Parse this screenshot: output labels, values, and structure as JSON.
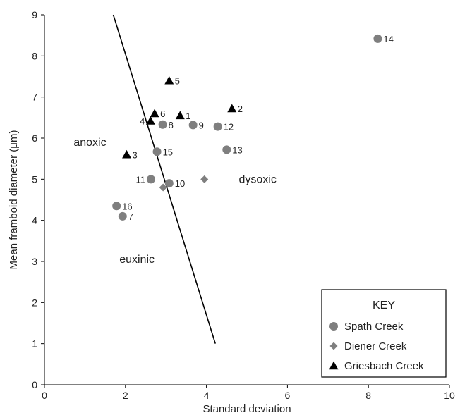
{
  "chart_data": {
    "type": "scatter",
    "xlabel": "Standard deviation",
    "ylabel": "Mean framboid diameter (μm)",
    "xlim": [
      0,
      10
    ],
    "ylim": [
      0,
      9
    ],
    "x_ticks": [
      "0",
      "2",
      "4",
      "6",
      "8",
      "10"
    ],
    "y_ticks": [
      "0",
      "1",
      "2",
      "3",
      "4",
      "5",
      "6",
      "7",
      "8",
      "9"
    ],
    "grid": false,
    "legend_title": "KEY",
    "legend_position": "bottom-right",
    "series": [
      {
        "name": "Spath Creek",
        "marker": "circle",
        "color": "#7f7f7f",
        "points": [
          {
            "x": 1.78,
            "y": 4.35,
            "label": "16"
          },
          {
            "x": 1.93,
            "y": 4.1,
            "label": "7"
          },
          {
            "x": 2.63,
            "y": 5.0,
            "label": "11"
          },
          {
            "x": 3.08,
            "y": 4.9,
            "label": "10"
          },
          {
            "x": 2.78,
            "y": 5.67,
            "label": "15"
          },
          {
            "x": 2.92,
            "y": 6.33,
            "label": "8"
          },
          {
            "x": 3.67,
            "y": 6.32,
            "label": "9"
          },
          {
            "x": 4.28,
            "y": 6.28,
            "label": "12"
          },
          {
            "x": 4.5,
            "y": 5.72,
            "label": "13"
          },
          {
            "x": 8.23,
            "y": 8.42,
            "label": "14"
          }
        ]
      },
      {
        "name": "Diener Creek",
        "marker": "diamond",
        "color": "#7f7f7f",
        "points": [
          {
            "x": 2.93,
            "y": 4.8,
            "label": ""
          },
          {
            "x": 3.95,
            "y": 5.0,
            "label": ""
          }
        ]
      },
      {
        "name": "Griesbach Creek",
        "marker": "triangle",
        "color": "#000000",
        "points": [
          {
            "x": 3.08,
            "y": 7.4,
            "label": "5"
          },
          {
            "x": 3.35,
            "y": 6.55,
            "label": "1"
          },
          {
            "x": 4.63,
            "y": 6.72,
            "label": "2"
          },
          {
            "x": 2.72,
            "y": 6.6,
            "label": "6"
          },
          {
            "x": 2.62,
            "y": 6.42,
            "label": "4"
          },
          {
            "x": 2.03,
            "y": 5.6,
            "label": "3"
          }
        ]
      }
    ],
    "boundary_line": {
      "x1": 1.7,
      "y1": 9.0,
      "x2": 4.22,
      "y2": 1.0
    },
    "region_labels": [
      {
        "text": "anoxic",
        "x": 0.72,
        "y": 5.9
      },
      {
        "text": "dysoxic",
        "x": 4.8,
        "y": 5.0
      },
      {
        "text": "euxinic",
        "x": 1.85,
        "y": 3.05
      }
    ]
  }
}
